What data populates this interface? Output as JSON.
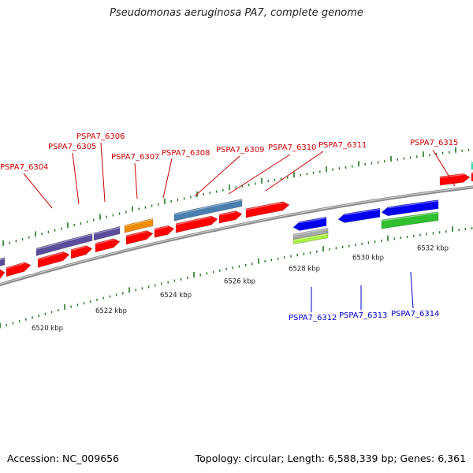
{
  "title": "Pseudomonas aeruginosa PA7, complete genome",
  "footer": {
    "accession": "Accession: NC_009656",
    "summary": "Topology: circular; Length: 6,588,339 bp; Genes: 6,361"
  },
  "colors": {
    "backbone": "#8a8a8a",
    "tick_major": "#1d7a1d",
    "tick_minor": "#1d7a1d",
    "label_forward": "#cc0000",
    "label_reverse": "#0000cc"
  },
  "scale_labels": [
    "6520 kbp",
    "6522 kbp",
    "6524 kbp",
    "6526 kbp",
    "6528 kbp",
    "6530 kbp",
    "6532 kbp"
  ],
  "forward_labels": [
    "PSPA7_6304",
    "PSPA7_6305",
    "PSPA7_6306",
    "PSPA7_6307",
    "PSPA7_6308",
    "PSPA7_6309",
    "PSPA7_6310",
    "PSPA7_6311",
    "PSPA7_6315"
  ],
  "reverse_labels": [
    "PSPA7_6312",
    "PSPA7_6313",
    "PSPA7_6314"
  ],
  "features": [
    {
      "track": "forward-outer",
      "color": "#5a4e9c"
    },
    {
      "track": "forward-outer",
      "color": "#5a4e9c"
    },
    {
      "track": "forward-outer",
      "color": "#5a4e9c"
    },
    {
      "track": "forward-outer",
      "color": "#f08c00"
    },
    {
      "track": "forward-outer",
      "color": "#4a7fb0"
    },
    {
      "track": "forward-outer",
      "color": "#2ee8b0"
    },
    {
      "track": "forward-gene",
      "color": "#ff0000"
    },
    {
      "track": "reverse-gene",
      "color": "#0000ee"
    },
    {
      "track": "reverse-inner",
      "color": "#a8a8a8"
    },
    {
      "track": "reverse-inner",
      "color": "#a8f040"
    },
    {
      "track": "reverse-inner",
      "color": "#30c030"
    }
  ]
}
